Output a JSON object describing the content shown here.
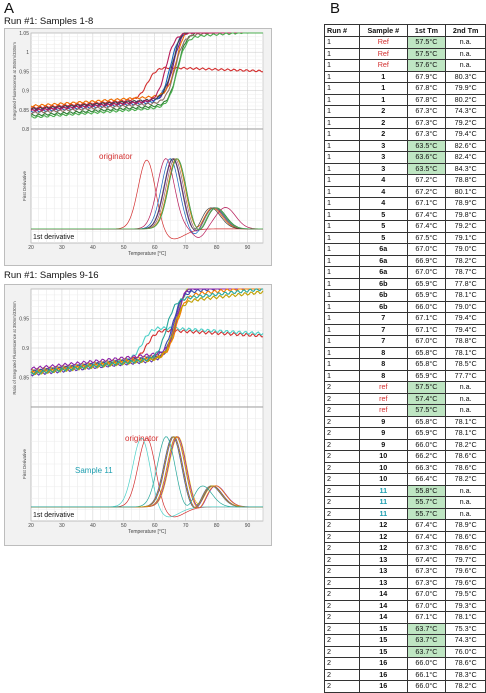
{
  "panel_a": {
    "letter": "A"
  },
  "panel_b": {
    "letter": "B"
  },
  "chart_data": [
    {
      "type": "line",
      "title": "Run #1: Samples 1-8",
      "xlabel": "Temperature [°C]",
      "xlim": [
        20,
        95
      ],
      "x_ticks": [
        "20",
        "30",
        "40",
        "50",
        "60",
        "70",
        "80",
        "90"
      ],
      "top": {
        "ylabel": "Integrated Fluorescence at 350nm/330nm",
        "ylim": [
          0.8,
          1.05
        ],
        "y_ticks": [
          "0.8",
          "0.85",
          "0.9",
          "0.95",
          "1",
          "1.05"
        ]
      },
      "bottom": {
        "ylabel": "First Derivative",
        "annotation_label": "1st derivative"
      },
      "annotations": [
        "originator"
      ],
      "series": [
        {
          "color": "#d32f2f",
          "ratio_mid": 57.5,
          "tm": 57.5,
          "tm2": null,
          "start": 0.855,
          "end": 0.935
        },
        {
          "color": "#2e7d32",
          "ratio_mid": 67.3,
          "tm": 67.3,
          "tm2": 79.8,
          "start": 0.835,
          "end": 1.02
        },
        {
          "color": "#6a1b9a",
          "ratio_mid": 66.0,
          "tm": 66.0,
          "tm2": 78.9,
          "start": 0.85,
          "end": 1.03
        },
        {
          "color": "#1565c0",
          "ratio_mid": 65.0,
          "tm": 65.0,
          "tm2": 79.3,
          "start": 0.845,
          "end": 1.025
        },
        {
          "color": "#ef6c00",
          "ratio_mid": 67.0,
          "tm": 67.0,
          "tm2": 78.5,
          "start": 0.86,
          "end": 1.04
        },
        {
          "color": "#8d6e63",
          "ratio_mid": 66.5,
          "tm": 66.5,
          "tm2": 79.0,
          "start": 0.842,
          "end": 1.015
        },
        {
          "color": "#424242",
          "ratio_mid": 65.8,
          "tm": 65.8,
          "tm2": 78.0,
          "start": 0.852,
          "end": 1.035
        },
        {
          "color": "#b71c5a",
          "ratio_mid": 63.6,
          "tm": 63.6,
          "tm2": 82.9,
          "start": 0.848,
          "end": 1.02
        },
        {
          "color": "#4caf50",
          "ratio_mid": 67.2,
          "tm": 67.2,
          "tm2": 79.5,
          "start": 0.83,
          "end": 1.01
        }
      ]
    },
    {
      "type": "line",
      "title": "Run #1: Samples 9-16",
      "xlabel": "Temperature [°C]",
      "xlim": [
        20,
        95
      ],
      "x_ticks": [
        "20",
        "30",
        "40",
        "50",
        "60",
        "70",
        "80",
        "90"
      ],
      "top": {
        "ylabel": "Ratio of Integrated Fluorescence at 350nm/330nm",
        "ylim": [
          0.8,
          1.0
        ],
        "y_ticks": [
          "0.85",
          "0.9",
          "0.95"
        ]
      },
      "bottom": {
        "ylabel": "First Derivative",
        "annotation_label": "1st derivative"
      },
      "annotations": [
        "originator",
        "Sample 11"
      ],
      "series": [
        {
          "color": "#d32f2f",
          "ratio_mid": 57.5,
          "tm": 57.5,
          "tm2": null,
          "start": 0.86,
          "end": 0.905
        },
        {
          "color": "#4dd0c8",
          "ratio_mid": 55.8,
          "tm": 55.8,
          "tm2": null,
          "start": 0.86,
          "end": 0.91
        },
        {
          "color": "#e6b800",
          "ratio_mid": 67.5,
          "tm": 67.5,
          "tm2": 78.6,
          "start": 0.862,
          "end": 0.985
        },
        {
          "color": "#7cb342",
          "ratio_mid": 66.9,
          "tm": 66.9,
          "tm2": 78.3,
          "start": 0.858,
          "end": 0.975
        },
        {
          "color": "#5e35b1",
          "ratio_mid": 66.2,
          "tm": 66.2,
          "tm2": 78.6,
          "start": 0.855,
          "end": 0.97
        },
        {
          "color": "#3949ab",
          "ratio_mid": 65.8,
          "tm": 65.8,
          "tm2": 78.1,
          "start": 0.86,
          "end": 0.965
        },
        {
          "color": "#8e24aa",
          "ratio_mid": 67.3,
          "tm": 67.3,
          "tm2": 79.7,
          "start": 0.865,
          "end": 0.98
        },
        {
          "color": "#f57c00",
          "ratio_mid": 67.0,
          "tm": 67.0,
          "tm2": 79.5,
          "start": 0.858,
          "end": 0.96
        },
        {
          "color": "#c0a000",
          "ratio_mid": 66.0,
          "tm": 66.0,
          "tm2": 78.3,
          "start": 0.856,
          "end": 0.95
        },
        {
          "color": "#26a69a",
          "ratio_mid": 63.7,
          "tm": 63.7,
          "tm2": 75.3,
          "start": 0.857,
          "end": 0.955
        }
      ]
    },
    {
      "type": "table",
      "columns": [
        "Run #",
        "Sample #",
        "1st Tm",
        "2nd Tm"
      ],
      "rows": [
        [
          "1",
          "Ref",
          "57.5°C",
          "n.a."
        ],
        [
          "1",
          "Ref",
          "57.5°C",
          "n.a."
        ],
        [
          "1",
          "Ref",
          "57.6°C",
          "n.a."
        ],
        [
          "1",
          "1",
          "67.9°C",
          "80.3°C"
        ],
        [
          "1",
          "1",
          "67.8°C",
          "79.9°C"
        ],
        [
          "1",
          "1",
          "67.8°C",
          "80.2°C"
        ],
        [
          "1",
          "2",
          "67.3°C",
          "74.3°C"
        ],
        [
          "1",
          "2",
          "67.3°C",
          "79.2°C"
        ],
        [
          "1",
          "2",
          "67.3°C",
          "79.4°C"
        ],
        [
          "1",
          "3",
          "63.5°C",
          "82.6°C"
        ],
        [
          "1",
          "3",
          "63.6°C",
          "82.4°C"
        ],
        [
          "1",
          "3",
          "63.5°C",
          "84.3°C"
        ],
        [
          "1",
          "4",
          "67.2°C",
          "78.8°C"
        ],
        [
          "1",
          "4",
          "67.2°C",
          "80.1°C"
        ],
        [
          "1",
          "4",
          "67.1°C",
          "78.9°C"
        ],
        [
          "1",
          "5",
          "67.4°C",
          "79.8°C"
        ],
        [
          "1",
          "5",
          "67.4°C",
          "79.2°C"
        ],
        [
          "1",
          "5",
          "67.5°C",
          "79.1°C"
        ],
        [
          "1",
          "6a",
          "67.0°C",
          "79.0°C"
        ],
        [
          "1",
          "6a",
          "66.9°C",
          "78.2°C"
        ],
        [
          "1",
          "6a",
          "67.0°C",
          "78.7°C"
        ],
        [
          "1",
          "6b",
          "65.9°C",
          "77.8°C"
        ],
        [
          "1",
          "6b",
          "65.9°C",
          "78.1°C"
        ],
        [
          "1",
          "6b",
          "66.0°C",
          "79.0°C"
        ],
        [
          "1",
          "7",
          "67.1°C",
          "79.4°C"
        ],
        [
          "1",
          "7",
          "67.1°C",
          "79.4°C"
        ],
        [
          "1",
          "7",
          "67.0°C",
          "78.8°C"
        ],
        [
          "1",
          "8",
          "65.8°C",
          "78.1°C"
        ],
        [
          "1",
          "8",
          "65.8°C",
          "78.5°C"
        ],
        [
          "1",
          "8",
          "65.9°C",
          "77.7°C"
        ],
        [
          "2",
          "ref",
          "57.5°C",
          "n.a."
        ],
        [
          "2",
          "ref",
          "57.4°C",
          "n.a."
        ],
        [
          "2",
          "ref",
          "57.5°C",
          "n.a."
        ],
        [
          "2",
          "9",
          "65.8°C",
          "78.1°C"
        ],
        [
          "2",
          "9",
          "65.9°C",
          "78.1°C"
        ],
        [
          "2",
          "9",
          "66.0°C",
          "78.2°C"
        ],
        [
          "2",
          "10",
          "66.2°C",
          "78.6°C"
        ],
        [
          "2",
          "10",
          "66.3°C",
          "78.6°C"
        ],
        [
          "2",
          "10",
          "66.4°C",
          "78.2°C"
        ],
        [
          "2",
          "11",
          "55.8°C",
          "n.a."
        ],
        [
          "2",
          "11",
          "55.7°C",
          "n.a."
        ],
        [
          "2",
          "11",
          "55.7°C",
          "n.a."
        ],
        [
          "2",
          "12",
          "67.4°C",
          "78.9°C"
        ],
        [
          "2",
          "12",
          "67.4°C",
          "78.6°C"
        ],
        [
          "2",
          "12",
          "67.3°C",
          "78.6°C"
        ],
        [
          "2",
          "13",
          "67.4°C",
          "79.7°C"
        ],
        [
          "2",
          "13",
          "67.3°C",
          "79.6°C"
        ],
        [
          "2",
          "13",
          "67.3°C",
          "79.6°C"
        ],
        [
          "2",
          "14",
          "67.0°C",
          "79.5°C"
        ],
        [
          "2",
          "14",
          "67.0°C",
          "79.3°C"
        ],
        [
          "2",
          "14",
          "67.1°C",
          "78.1°C"
        ],
        [
          "2",
          "15",
          "63.7°C",
          "75.3°C"
        ],
        [
          "2",
          "15",
          "63.7°C",
          "74.3°C"
        ],
        [
          "2",
          "15",
          "63.7°C",
          "76.0°C"
        ],
        [
          "2",
          "16",
          "66.0°C",
          "78.6°C"
        ],
        [
          "2",
          "16",
          "66.1°C",
          "78.3°C"
        ],
        [
          "2",
          "16",
          "66.0°C",
          "78.2°C"
        ]
      ],
      "highlight_color": "#bfe6c3",
      "ref_color": "#d32f2f",
      "teal_color": "#1e9fb0"
    }
  ]
}
